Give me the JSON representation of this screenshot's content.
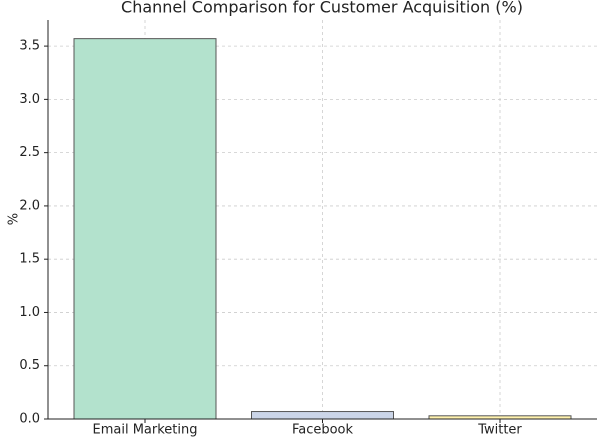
{
  "chart_data": {
    "type": "bar",
    "title": "Channel Comparison for Customer Acquisition (%)",
    "y_label": "%",
    "categories": [
      "Email Marketing",
      "Facebook",
      "Twitter"
    ],
    "values": [
      3.57,
      0.07,
      0.03
    ],
    "colors": [
      "#b3e2cd",
      "#cbd5e8",
      "#fff2ae"
    ],
    "edge_color": "#555555",
    "ylim": [
      0,
      3.745
    ],
    "yticks": [
      {
        "value": 0,
        "label": "0.0"
      },
      0.5,
      {
        "value": 1,
        "label": "1.0"
      },
      1.5,
      {
        "value": 2,
        "label": "2.0"
      },
      2.5,
      {
        "value": 3,
        "label": "3.0"
      },
      3.5
    ],
    "grid": true
  }
}
